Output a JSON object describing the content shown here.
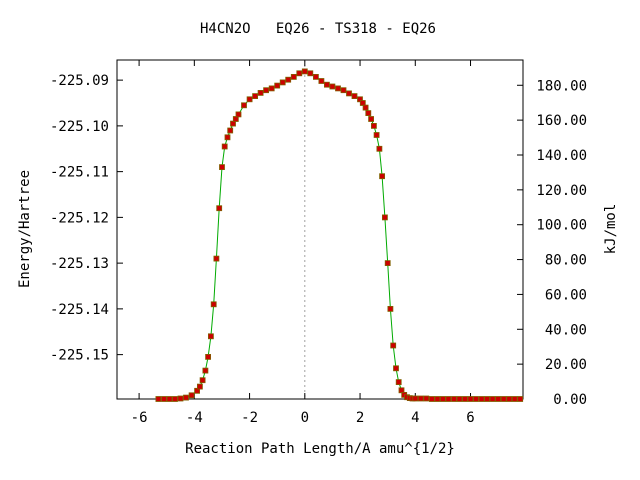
{
  "chart_data": {
    "type": "line",
    "title": "H4CN2O   EQ26 - TS318 - EQ26",
    "xlabel": "Reaction Path Length/A amu^{1/2}",
    "ylabel": "Energy/Hartree",
    "y2label": "kJ/mol",
    "xlim": [
      -6.8,
      7.9
    ],
    "ylim": [
      -225.1597,
      -225.0856
    ],
    "y2lim": [
      0,
      194.5
    ],
    "x_ticks": [
      "-6",
      "-4",
      "-2",
      "0",
      "2",
      "4",
      "6"
    ],
    "y_ticks": [
      "-225.09",
      "-225.10",
      "-225.11",
      "-225.12",
      "-225.13",
      "-225.14",
      "-225.15"
    ],
    "y2_ticks": [
      "0.00",
      "20.00",
      "40.00",
      "60.00",
      "80.00",
      "100.00",
      "120.00",
      "140.00",
      "160.00",
      "180.00"
    ],
    "ts_marker_x": 0,
    "grid": false,
    "legend": "none",
    "series": [
      {
        "color": "#00aa00",
        "marker_color": "#cc0000",
        "marker_border": "#806000",
        "x": [
          -5.3,
          -5.1,
          -4.9,
          -4.7,
          -4.5,
          -4.3,
          -4.1,
          -3.9,
          -3.8,
          -3.7,
          -3.6,
          -3.5,
          -3.4,
          -3.3,
          -3.2,
          -3.1,
          -3.0,
          -2.9,
          -2.8,
          -2.7,
          -2.6,
          -2.5,
          -2.4,
          -2.2,
          -2.0,
          -1.8,
          -1.6,
          -1.4,
          -1.2,
          -1.0,
          -0.8,
          -0.6,
          -0.4,
          -0.2,
          0.0,
          0.2,
          0.4,
          0.6,
          0.8,
          1.0,
          1.2,
          1.4,
          1.6,
          1.8,
          2.0,
          2.1,
          2.2,
          2.3,
          2.4,
          2.5,
          2.6,
          2.7,
          2.8,
          2.9,
          3.0,
          3.1,
          3.2,
          3.3,
          3.4,
          3.5,
          3.6,
          3.7,
          3.8,
          3.9,
          4.0,
          4.2,
          4.4,
          4.6,
          4.8,
          5.0,
          5.2,
          5.4,
          5.6,
          5.8,
          6.0,
          6.2,
          6.4,
          6.6,
          6.8,
          7.0,
          7.2,
          7.4,
          7.6,
          7.8
        ],
        "values": [
          -225.1597,
          -225.1597,
          -225.1597,
          -225.1597,
          -225.1596,
          -225.1594,
          -225.1589,
          -225.1579,
          -225.157,
          -225.1556,
          -225.1535,
          -225.1505,
          -225.146,
          -225.139,
          -225.129,
          -225.118,
          -225.109,
          -225.1045,
          -225.1025,
          -225.101,
          -225.0995,
          -225.0985,
          -225.0975,
          -225.0955,
          -225.0942,
          -225.0935,
          -225.0928,
          -225.0922,
          -225.0918,
          -225.0912,
          -225.0905,
          -225.0899,
          -225.0893,
          -225.0885,
          -225.0881,
          -225.0885,
          -225.0893,
          -225.0902,
          -225.091,
          -225.0914,
          -225.0918,
          -225.0922,
          -225.0929,
          -225.0935,
          -225.0942,
          -225.095,
          -225.096,
          -225.0972,
          -225.0985,
          -225.1,
          -225.102,
          -225.105,
          -225.111,
          -225.12,
          -225.13,
          -225.14,
          -225.148,
          -225.153,
          -225.156,
          -225.1578,
          -225.1588,
          -225.1593,
          -225.1595,
          -225.1596,
          -225.1596,
          -225.1596,
          -225.1596,
          -225.1597,
          -225.1597,
          -225.1597,
          -225.1597,
          -225.1597,
          -225.1597,
          -225.1597,
          -225.1597,
          -225.1597,
          -225.1597,
          -225.1597,
          -225.1597,
          -225.1597,
          -225.1597,
          -225.1597,
          -225.1597,
          -225.1597
        ]
      }
    ]
  }
}
